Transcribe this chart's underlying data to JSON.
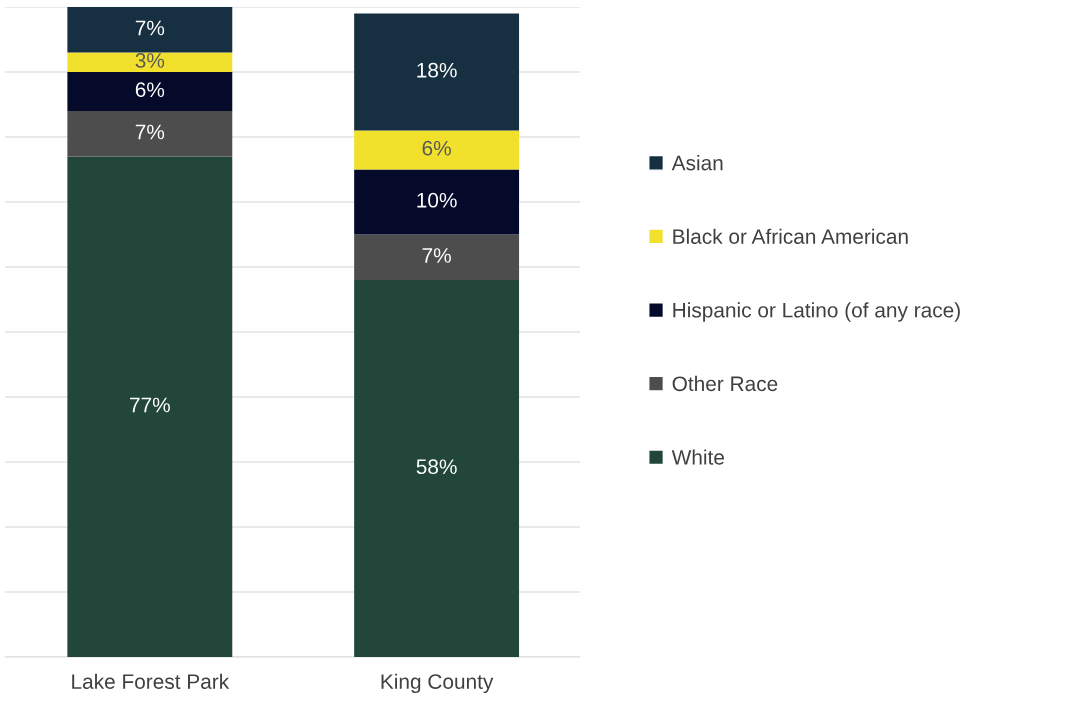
{
  "chart_data": {
    "type": "bar",
    "stacked": true,
    "categories": [
      "Lake Forest Park",
      "King County"
    ],
    "series": [
      {
        "name": "White",
        "color": "#22463a",
        "values": [
          77,
          58
        ],
        "value_labels": [
          "77%",
          "58%"
        ]
      },
      {
        "name": "Other Race",
        "color": "#4d4d4d",
        "values": [
          7,
          7
        ],
        "value_labels": [
          "7%",
          "7%"
        ]
      },
      {
        "name": "Hispanic or Latino (of any race)",
        "color": "#050a2a",
        "values": [
          6,
          10
        ],
        "value_labels": [
          "6%",
          "10%"
        ]
      },
      {
        "name": "Black or African American",
        "color": "#f2e12c",
        "values": [
          3,
          6
        ],
        "value_labels": [
          "3%",
          "6%"
        ]
      },
      {
        "name": "Asian",
        "color": "#163041",
        "values": [
          7,
          18
        ],
        "value_labels": [
          "7%",
          "18%"
        ]
      }
    ],
    "tick_labels": "x",
    "grid": "y",
    "legend": "right"
  }
}
